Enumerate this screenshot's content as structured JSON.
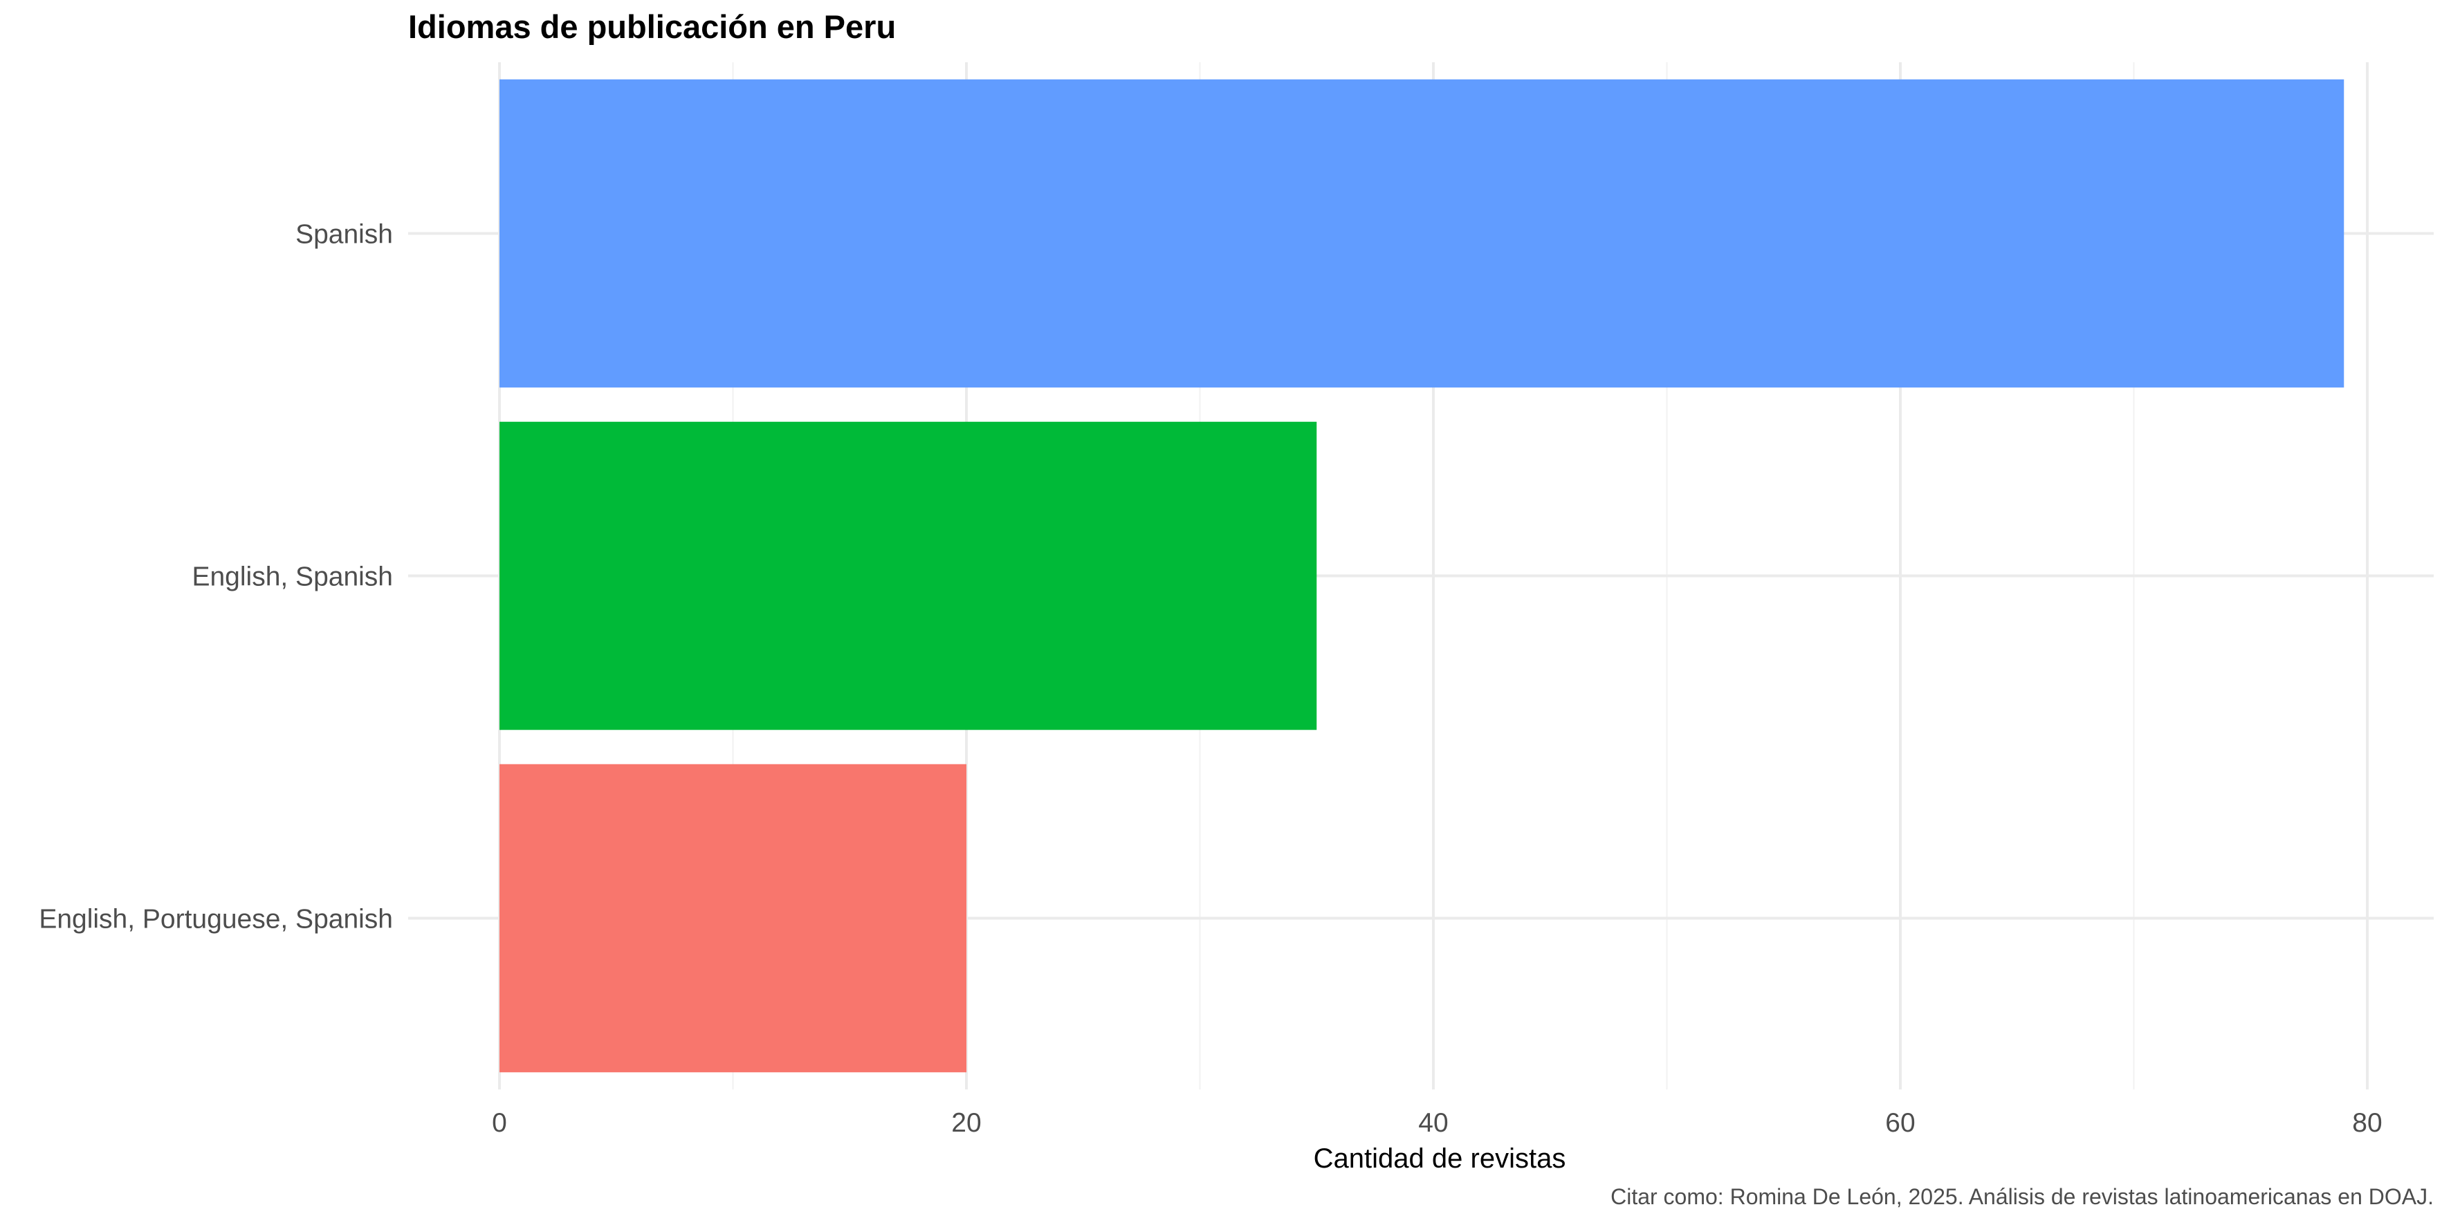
{
  "chart_data": {
    "type": "bar",
    "orientation": "horizontal",
    "title": "Idiomas de publicación en Peru",
    "xlabel": "Cantidad de revistas",
    "ylabel": "",
    "caption": "Citar como: Romina De León, 2025. Análisis de revistas latinoamericanas en DOAJ.",
    "categories": [
      "English, Portuguese, Spanish",
      "English, Spanish",
      "Spanish"
    ],
    "values": [
      20,
      35,
      79
    ],
    "colors": [
      "#F8766D",
      "#00BA38",
      "#619CFF"
    ],
    "xlim": [
      0,
      83
    ],
    "xticks": [
      0,
      20,
      40,
      60,
      80
    ],
    "xtick_labels": [
      "0",
      "20",
      "40",
      "60",
      "80"
    ],
    "grid": true,
    "legend": "none"
  }
}
